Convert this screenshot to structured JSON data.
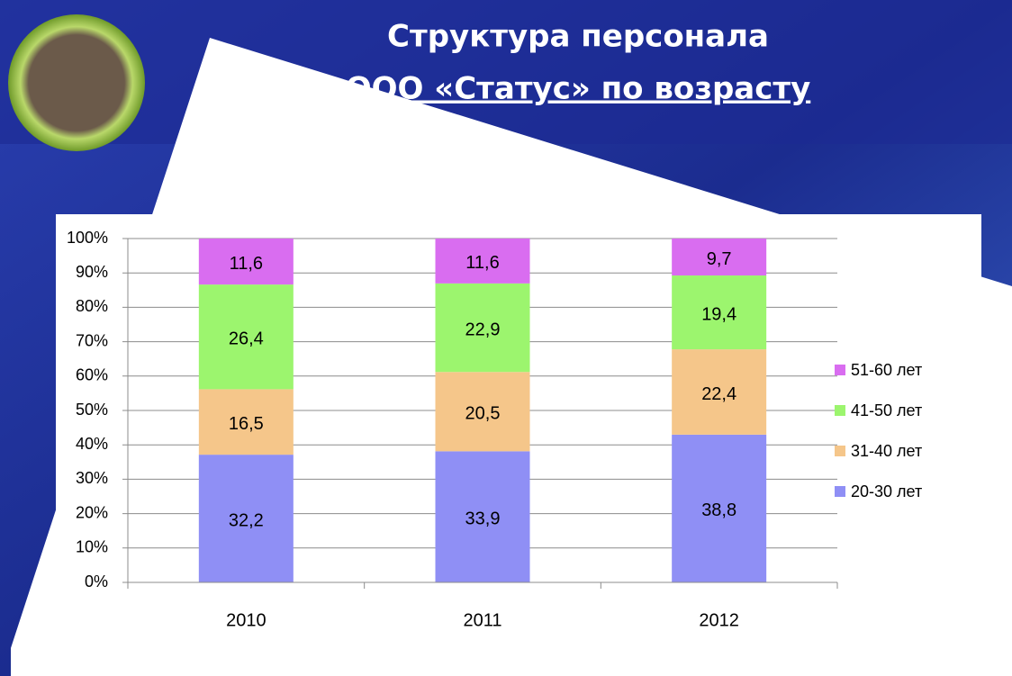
{
  "chart_data": {
    "type": "bar",
    "stack_mode": "percent",
    "title": [
      "Структура персонала",
      "ООО «Статус» по возрасту"
    ],
    "categories": [
      "2010",
      "2011",
      "2012"
    ],
    "series": [
      {
        "name": "20-30 лет",
        "color": "#8f8ff5",
        "values": [
          32.2,
          33.9,
          38.8
        ],
        "value_labels": [
          "32,2",
          "33,9",
          "38,8"
        ]
      },
      {
        "name": "31-40 лет",
        "color": "#f5c68a",
        "values": [
          16.5,
          20.5,
          22.4
        ],
        "value_labels": [
          "16,5",
          "20,5",
          "22,4"
        ]
      },
      {
        "name": "41-50 лет",
        "color": "#9cf56e",
        "values": [
          26.4,
          22.9,
          19.4
        ],
        "value_labels": [
          "26,4",
          "22,9",
          "19,4"
        ]
      },
      {
        "name": "51-60 лет",
        "color": "#d96df0",
        "values": [
          11.6,
          11.6,
          9.7
        ],
        "value_labels": [
          "11,6",
          "11,6",
          "9,7"
        ]
      }
    ],
    "ylim": [
      0,
      100
    ],
    "yticks": [
      {
        "value": 0,
        "label": "0%"
      },
      {
        "value": 10,
        "label": "10%"
      },
      {
        "value": 20,
        "label": "20%"
      },
      {
        "value": 30,
        "label": "30%"
      },
      {
        "value": 40,
        "label": "40%"
      },
      {
        "value": 50,
        "label": "50%"
      },
      {
        "value": 60,
        "label": "60%"
      },
      {
        "value": 70,
        "label": "70%"
      },
      {
        "value": 80,
        "label": "80%"
      },
      {
        "value": 90,
        "label": "90%"
      },
      {
        "value": 100,
        "label": "100%"
      }
    ],
    "grid": true,
    "legend": "right"
  }
}
